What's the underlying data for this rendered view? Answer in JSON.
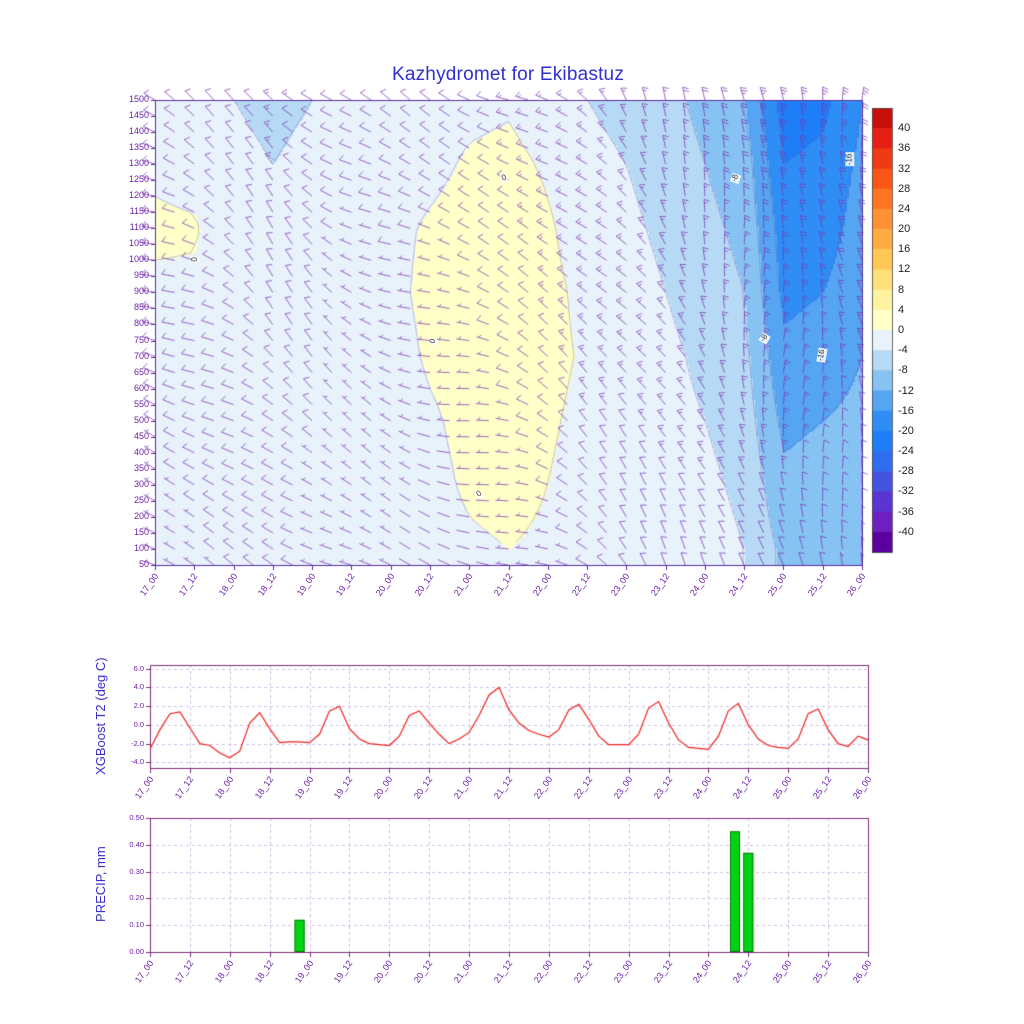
{
  "page": {
    "background": "#ffffff"
  },
  "title": {
    "text": "Kazhydromet for Ekibastuz"
  },
  "colors": {
    "title": "#3030cf",
    "axis_purple": "#6b1fa8",
    "axis_title": "#3a2ec8",
    "frame_top": "#5a2d9e",
    "frame_meteo": "#7c2d78",
    "grid_dash": "#b9a7d4",
    "barb": "#7b35b2",
    "contour_line": "#6f5fae",
    "line_red": "#ee2222",
    "bar_green": "#00d414",
    "bar_edge": "#006600",
    "colorbar_label": "#222222",
    "contour_label": "#333333"
  },
  "x_tick_labels": [
    "17_00",
    "17_12",
    "18_00",
    "18_12",
    "19_00",
    "19_12",
    "20_00",
    "20_12",
    "21_00",
    "21_12",
    "22_00",
    "22_12",
    "23_00",
    "23_12",
    "24_00",
    "24_12",
    "25_00",
    "25_12",
    "26_00"
  ],
  "chart_data": [
    {
      "type": "heatmap",
      "name": "wind-temperature-time-height-cross-section",
      "title": "Kazhydromet for Ekibastuz",
      "x_tick_labels": [
        "17_00",
        "17_12",
        "18_00",
        "18_12",
        "19_00",
        "19_12",
        "20_00",
        "20_12",
        "21_00",
        "21_12",
        "22_00",
        "22_12",
        "23_00",
        "23_12",
        "24_00",
        "24_12",
        "25_00",
        "25_12",
        "26_00"
      ],
      "y_tick_labels": [
        1500,
        1450,
        1400,
        1350,
        1300,
        1250,
        1200,
        1150,
        1100,
        1050,
        1000,
        950,
        900,
        850,
        800,
        750,
        700,
        650,
        600,
        550,
        500,
        450,
        400,
        350,
        300,
        250,
        200,
        150,
        100,
        50
      ],
      "time_range_hours": [
        0,
        216
      ],
      "grid_times": [
        0,
        12,
        24,
        36,
        48,
        60,
        72,
        84,
        96,
        108,
        120,
        132,
        144,
        156,
        168,
        180,
        192,
        204,
        216
      ],
      "grid_levels": [
        1500,
        1300,
        1100,
        900,
        700,
        500,
        300,
        100
      ],
      "grid_values_by_level": [
        [
          -2,
          -2,
          -4,
          -5,
          -4,
          -3,
          -3,
          -2,
          -1,
          -0.5,
          -2,
          -4,
          -5,
          -7,
          -9,
          -12,
          -22,
          -21,
          -16
        ],
        [
          -0.5,
          -1,
          -3,
          -4,
          -3,
          -2.5,
          -2,
          -1,
          0.5,
          1,
          -0.5,
          -3,
          -4,
          -6,
          -8,
          -10,
          -20,
          -19,
          -15
        ],
        [
          0.5,
          0.3,
          -2,
          -2.5,
          -2,
          -2,
          -1,
          0.5,
          1.5,
          2,
          0.5,
          -2,
          -3,
          -5,
          -7,
          -9,
          -18,
          -18,
          -14
        ],
        [
          -0.5,
          -0.5,
          -1.5,
          -2,
          -1.5,
          -1.5,
          -1,
          1,
          2,
          2,
          1,
          -1,
          -2,
          -4,
          -6,
          -8,
          -17,
          -16,
          -13
        ],
        [
          -1.5,
          -1.5,
          -2,
          -2,
          -2,
          -2,
          -1.5,
          0.5,
          1.5,
          1.5,
          1,
          -0.5,
          -1.5,
          -3,
          -5,
          -7,
          -15,
          -14,
          -12
        ],
        [
          -2,
          -2,
          -2.5,
          -2.5,
          -3,
          -2.5,
          -2,
          -0.5,
          1,
          1,
          0.5,
          -1,
          -2,
          -2.5,
          -4,
          -6,
          -13,
          -12,
          -11
        ],
        [
          -3,
          -2.5,
          -3,
          -4,
          -4,
          -3,
          -2.5,
          -1,
          0.5,
          1,
          0,
          -1.5,
          -2,
          -2,
          -3,
          -5,
          -11,
          -10,
          -10
        ],
        [
          -2,
          -2,
          -2,
          -3,
          -3,
          -2,
          -2,
          -1.5,
          -0.5,
          0,
          -0.5,
          -1,
          -1.5,
          -1.5,
          -2,
          -4,
          -9,
          -8,
          -9
        ]
      ],
      "contour_interval": 4,
      "contour_labels": [
        {
          "text": "0",
          "fx": 0.064,
          "fy": 0.344,
          "rot": -90
        },
        {
          "text": "0",
          "fx": 0.5,
          "fy": 0.17,
          "rot": -20
        },
        {
          "text": "0",
          "fx": 0.4,
          "fy": 0.52,
          "rot": -70
        },
        {
          "text": "0",
          "fx": 0.465,
          "fy": 0.85,
          "rot": -30
        },
        {
          "text": "-8",
          "fx": 0.826,
          "fy": 0.17,
          "rot": -70
        },
        {
          "text": "-8",
          "fx": 0.867,
          "fy": 0.515,
          "rot": -60
        },
        {
          "text": "-16",
          "fx": 0.985,
          "fy": 0.13,
          "rot": -90
        },
        {
          "text": "-16",
          "fx": 0.945,
          "fy": 0.55,
          "rot": -80
        }
      ],
      "colorbar": {
        "tick_labels": [
          40,
          36,
          32,
          28,
          24,
          20,
          16,
          12,
          8,
          4,
          0,
          -4,
          -8,
          -12,
          -16,
          -20,
          -24,
          -28,
          -32,
          -36,
          -40
        ],
        "segment_colors_ascending": [
          "#5b009e",
          "#6f1ec2",
          "#5a35d2",
          "#4653e0",
          "#2e6cf0",
          "#1e7ef8",
          "#2e8ef5",
          "#55a5f2",
          "#86c3f2",
          "#b6daf5",
          "#e8f2fb",
          "#ffffc8",
          "#fff2a0",
          "#ffe078",
          "#ffc855",
          "#ffad42",
          "#ff9232",
          "#ff7522",
          "#fa5618",
          "#f03a14",
          "#e61e14",
          "#c80f0a"
        ]
      },
      "wind": {
        "dirs_deg_from": [
          285,
          290,
          300,
          310,
          305,
          295,
          290,
          285,
          280,
          285,
          295,
          305,
          315,
          325,
          335,
          345,
          350,
          350,
          345
        ],
        "speeds_kt": [
          7,
          8,
          10,
          12,
          10,
          8,
          8,
          6,
          6,
          8,
          10,
          12,
          12,
          14,
          16,
          18,
          20,
          18,
          15
        ]
      }
    },
    {
      "type": "line",
      "name": "xgboost-t2",
      "ylabel": "XGBoost T2 (deg C)",
      "y_tick_labels": [
        "6.0",
        "4.0",
        "2.0",
        "0.0",
        "-2.0",
        "-4.0"
      ],
      "ylim": [
        -4.6,
        6.4
      ],
      "x_step_hours": 3,
      "x_tick_labels": [
        "17_00",
        "17_12",
        "18_00",
        "18_12",
        "19_00",
        "19_12",
        "20_00",
        "20_12",
        "21_00",
        "21_12",
        "22_00",
        "22_12",
        "23_00",
        "23_12",
        "24_00",
        "24_12",
        "25_00",
        "25_12",
        "26_00"
      ],
      "values": [
        -2.6,
        -0.5,
        1.2,
        1.4,
        -0.3,
        -2.0,
        -2.2,
        -3.0,
        -3.5,
        -2.8,
        0.2,
        1.3,
        -0.4,
        -1.9,
        -1.8,
        -1.8,
        -1.9,
        -1.0,
        1.5,
        2.0,
        -0.4,
        -1.5,
        -2.0,
        -2.1,
        -2.2,
        -1.2,
        1.0,
        1.5,
        0.2,
        -1.0,
        -2.0,
        -1.5,
        -0.8,
        1.0,
        3.2,
        4.0,
        1.6,
        0.2,
        -0.6,
        -1.0,
        -1.3,
        -0.5,
        1.6,
        2.2,
        0.6,
        -1.2,
        -2.1,
        -2.1,
        -2.1,
        -1.0,
        1.8,
        2.5,
        0.2,
        -1.6,
        -2.4,
        -2.5,
        -2.6,
        -1.2,
        1.5,
        2.3,
        0.0,
        -1.5,
        -2.2,
        -2.4,
        -2.5,
        -1.5,
        1.2,
        1.7,
        -0.5,
        -2.0,
        -2.3,
        -1.2,
        -1.6
      ]
    },
    {
      "type": "bar",
      "name": "precip",
      "ylabel": "PRECIP, mm",
      "y_tick_labels": [
        "0.50",
        "0.40",
        "0.30",
        "0.20",
        "0.10",
        "0.00"
      ],
      "ylim": [
        0,
        0.5
      ],
      "bar_width_hours": 3,
      "x_tick_labels": [
        "17_00",
        "17_12",
        "18_00",
        "18_12",
        "19_00",
        "19_12",
        "20_00",
        "20_12",
        "21_00",
        "21_12",
        "22_00",
        "22_12",
        "23_00",
        "23_12",
        "24_00",
        "24_12",
        "25_00",
        "25_12",
        "26_00"
      ],
      "bars": [
        {
          "hour": 45,
          "value": 0.12
        },
        {
          "hour": 176,
          "value": 0.45
        },
        {
          "hour": 180,
          "value": 0.37
        }
      ]
    }
  ]
}
